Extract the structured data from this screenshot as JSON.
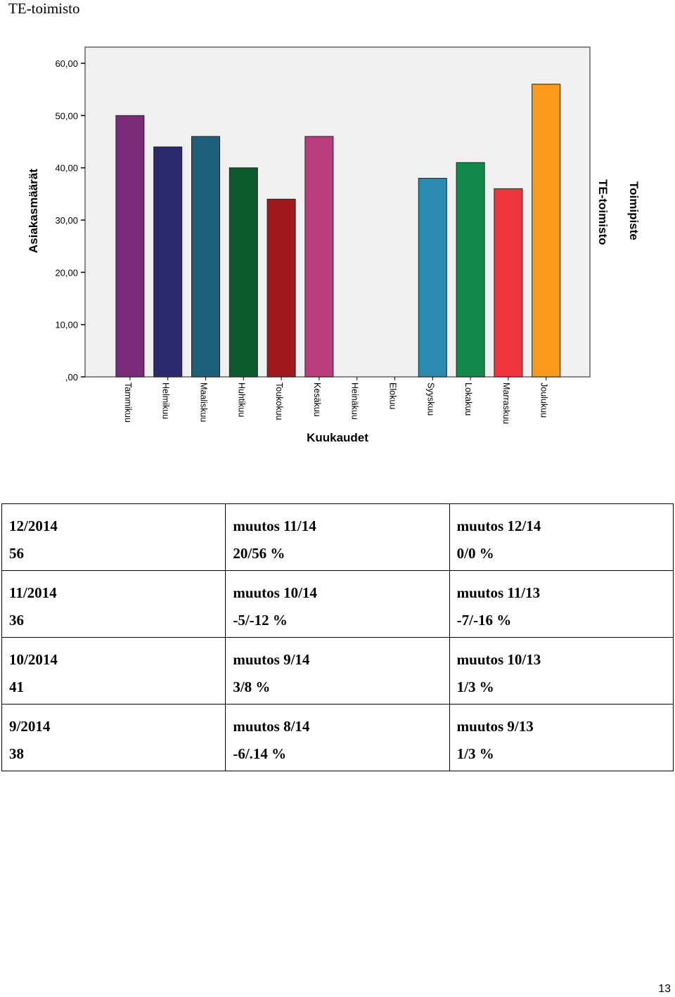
{
  "document": {
    "title": "TE-toimisto",
    "page_number": "13"
  },
  "chart_data": {
    "type": "bar",
    "categories": [
      "Tammikuu",
      "Helmikuu",
      "Maaliskuu",
      "Huhtikuu",
      "Toukokuu",
      "Kesäkuu",
      "Heinäkuu",
      "Elokuu",
      "Syyskuu",
      "Lokakuu",
      "Marraskuu",
      "Joulukuu"
    ],
    "values": [
      50,
      44,
      46,
      40,
      34,
      46,
      0,
      0,
      38,
      41,
      36,
      56
    ],
    "colors": [
      "#7b2a7a",
      "#2b2a6e",
      "#1d5f78",
      "#0d5a2e",
      "#a0171c",
      "#b93d7c",
      null,
      null,
      "#2a8ab0",
      "#12894a",
      "#f0363c",
      "#f99a1c"
    ],
    "xlabel": "Kuukaudet",
    "ylabel": "Asiakasmäärät",
    "ylim": [
      0,
      60
    ],
    "yticks": [
      ",00",
      "10,00",
      "20,00",
      "30,00",
      "40,00",
      "50,00",
      "60,00"
    ],
    "legend_title": "Toimipiste",
    "legend_entries": [
      "TE-toimisto"
    ],
    "plot_background": "#f0f0f0",
    "grid": false
  },
  "table": {
    "rows": [
      [
        {
          "top": "12/2014",
          "bottom": "56"
        },
        {
          "top": "muutos 11/14",
          "bottom": "20/56 %"
        },
        {
          "top": "muutos 12/14",
          "bottom": "0/0 %"
        }
      ],
      [
        {
          "top": "11/2014",
          "bottom": "36"
        },
        {
          "top": "muutos 10/14",
          "bottom": "-5/-12 %"
        },
        {
          "top": "muutos 11/13",
          "bottom": "-7/-16 %"
        }
      ],
      [
        {
          "top": "10/2014",
          "bottom": "41"
        },
        {
          "top": "muutos 9/14",
          "bottom": "3/8 %"
        },
        {
          "top": "muutos 10/13",
          "bottom": "1/3 %"
        }
      ],
      [
        {
          "top": "9/2014",
          "bottom": "38"
        },
        {
          "top": "muutos 8/14",
          "bottom": "-6/.14 %"
        },
        {
          "top": "muutos 9/13",
          "bottom": "1/3 %"
        }
      ]
    ]
  }
}
